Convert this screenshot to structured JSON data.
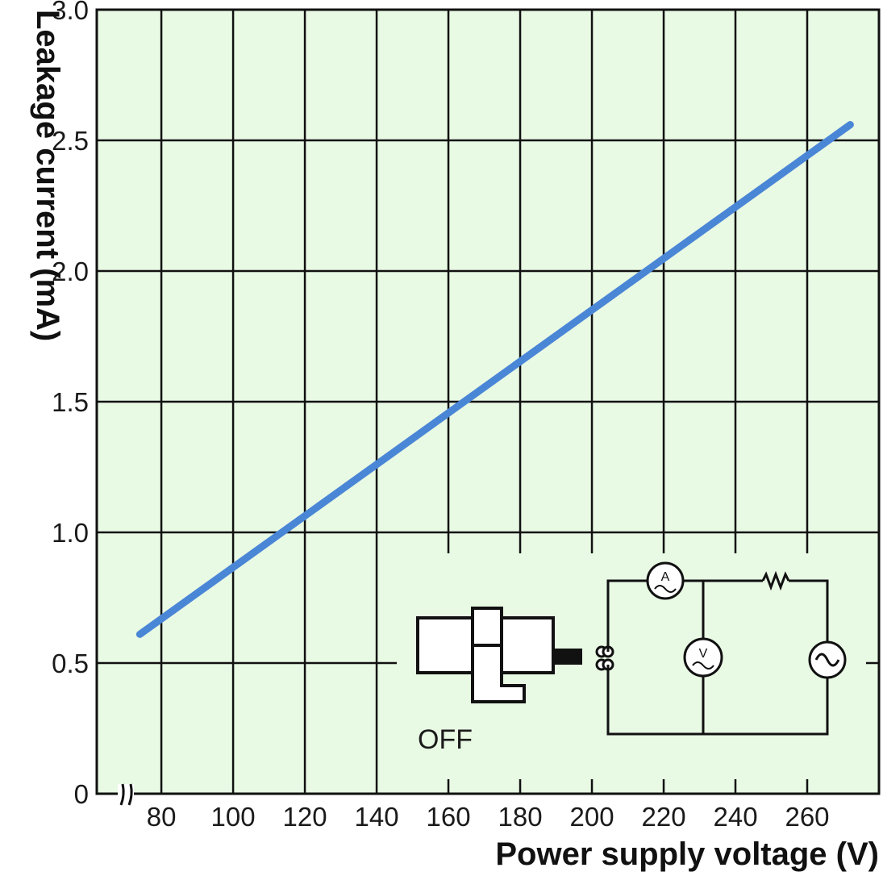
{
  "chart_data": {
    "type": "line",
    "xlabel": "Power supply voltage (V)",
    "ylabel": "Leakage current (mA)",
    "x_ticks": [
      "80",
      "100",
      "120",
      "140",
      "160",
      "180",
      "200",
      "220",
      "240",
      "260"
    ],
    "y_ticks": [
      "0",
      "0.5",
      "1.0",
      "1.5",
      "2.0",
      "2.5",
      "3.0"
    ],
    "xlim": [
      62,
      280
    ],
    "ylim": [
      0,
      3.0
    ],
    "x_axis_break": true,
    "grid": true,
    "series": [
      {
        "x": [
          74,
          272
        ],
        "y": [
          0.61,
          2.56
        ]
      }
    ],
    "inset": {
      "label": "OFF"
    }
  },
  "colors": {
    "plot_background": "#e8f9e4",
    "grid": "#111111",
    "line": "#4a86d6"
  }
}
